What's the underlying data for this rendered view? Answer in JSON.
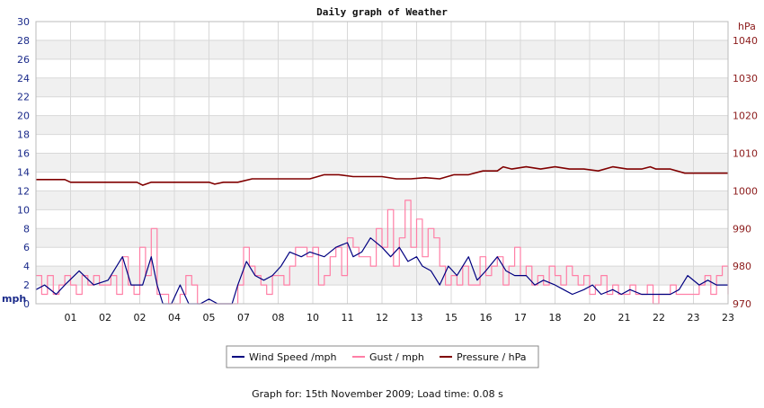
{
  "chart_data": {
    "type": "line",
    "title": "Daily graph of Weather",
    "date": "15th November 2009",
    "footer_prefix": "Graph for: ",
    "footer_suffix": "; Load time: 0.08 s",
    "x_ticks": [
      "01",
      "02",
      "02",
      "04",
      "05",
      "07",
      "08",
      "10",
      "11",
      "12",
      "13",
      "15",
      "16",
      "17",
      "18",
      "20",
      "21",
      "22",
      "23",
      "23"
    ],
    "y_left": {
      "unit": "mph",
      "min": 0,
      "max": 30,
      "step": 2,
      "ticks": [
        "0",
        "2",
        "4",
        "6",
        "8",
        "10",
        "12",
        "14",
        "16",
        "18",
        "20",
        "22",
        "24",
        "26",
        "28",
        "30"
      ]
    },
    "y_right": {
      "unit": "hPa",
      "min": 970,
      "max": 1045,
      "ticks": [
        "970",
        "980",
        "990",
        "1000",
        "1010",
        "1020",
        "1030",
        "1040"
      ]
    },
    "grid": true,
    "legend_position": "bottom",
    "colors": {
      "wind": "#000080",
      "gust": "#ff7fa6",
      "pressure": "#800000",
      "axis_left": "#1a2a8a",
      "axis_right": "#8b1a1a",
      "band": "#f0f0f0",
      "grid": "#d8d8d8"
    },
    "series": [
      {
        "name": "Wind Speed /mph",
        "color": "#000080",
        "axis": "left",
        "x": [
          0,
          0.3,
          0.7,
          1.0,
          1.5,
          2.0,
          2.5,
          3.0,
          3.3,
          3.7,
          4.0,
          4.2,
          4.4,
          4.7,
          5.0,
          5.3,
          5.7,
          6.0,
          6.3,
          6.6,
          6.8,
          7.0,
          7.3,
          7.6,
          7.9,
          8.2,
          8.5,
          8.8,
          9.2,
          9.5,
          10.0,
          10.4,
          10.8,
          11.0,
          11.3,
          11.6,
          12.0,
          12.3,
          12.6,
          12.9,
          13.2,
          13.4,
          13.7,
          14.0,
          14.3,
          14.6,
          15.0,
          15.3,
          15.6,
          16.0,
          16.3,
          16.6,
          17.0,
          17.3,
          17.6,
          18.0,
          18.3,
          18.6,
          19.0,
          19.3,
          19.6,
          20.0,
          20.3,
          20.6,
          21.0,
          21.3,
          21.6,
          22.0,
          22.3,
          22.6,
          23.0,
          23.3,
          23.6,
          24.0
        ],
        "values": [
          1.5,
          2,
          1,
          2,
          3.5,
          2,
          2.5,
          5,
          2,
          2,
          5,
          2,
          0,
          0,
          2,
          0,
          0,
          0.5,
          0,
          0,
          0,
          2,
          4.5,
          3,
          2.5,
          3,
          4,
          5.5,
          5,
          5.5,
          5,
          6,
          6.5,
          5,
          5.5,
          7,
          6,
          5,
          6,
          4.5,
          5,
          4,
          3.5,
          2,
          4,
          3,
          5,
          2.5,
          3.5,
          5,
          3.5,
          3,
          3,
          2,
          2.5,
          2,
          1.5,
          1,
          1.5,
          2,
          1,
          1.5,
          1,
          1.5,
          1,
          1,
          1,
          1,
          1.5,
          3,
          2,
          2.5,
          2,
          2
        ]
      },
      {
        "name": "Gust / mph",
        "color": "#ff7fa6",
        "axis": "left",
        "x": [
          0,
          0.2,
          0.4,
          0.6,
          0.8,
          1.0,
          1.2,
          1.4,
          1.6,
          1.8,
          2.0,
          2.2,
          2.4,
          2.6,
          2.8,
          3.0,
          3.2,
          3.4,
          3.6,
          3.8,
          4.0,
          4.2,
          4.4,
          4.6,
          4.8,
          5.0,
          5.2,
          5.4,
          5.6,
          5.8,
          6.0,
          6.2,
          6.4,
          6.6,
          6.8,
          7.0,
          7.2,
          7.4,
          7.6,
          7.8,
          8.0,
          8.2,
          8.4,
          8.6,
          8.8,
          9.0,
          9.2,
          9.4,
          9.6,
          9.8,
          10.0,
          10.2,
          10.4,
          10.6,
          10.8,
          11.0,
          11.2,
          11.4,
          11.6,
          11.8,
          12.0,
          12.2,
          12.4,
          12.6,
          12.8,
          13.0,
          13.2,
          13.4,
          13.6,
          13.8,
          14.0,
          14.2,
          14.4,
          14.6,
          14.8,
          15.0,
          15.2,
          15.4,
          15.6,
          15.8,
          16.0,
          16.2,
          16.4,
          16.6,
          16.8,
          17.0,
          17.2,
          17.4,
          17.6,
          17.8,
          18.0,
          18.2,
          18.4,
          18.6,
          18.8,
          19.0,
          19.2,
          19.4,
          19.6,
          19.8,
          20.0,
          20.2,
          20.4,
          20.6,
          20.8,
          21.0,
          21.2,
          21.4,
          21.6,
          21.8,
          22.0,
          22.2,
          22.4,
          22.6,
          22.8,
          23.0,
          23.2,
          23.4,
          23.6,
          23.8,
          24.0
        ],
        "values": [
          3,
          1,
          3,
          1,
          2,
          3,
          2,
          1,
          3,
          2,
          3,
          2,
          2,
          3,
          1,
          5,
          2,
          1,
          6,
          3,
          8,
          1,
          1,
          0,
          0,
          1,
          3,
          2,
          0,
          0,
          0,
          0,
          0,
          0,
          0,
          2,
          6,
          4,
          3,
          2,
          1,
          3,
          3,
          2,
          4,
          6,
          6,
          5,
          6,
          2,
          3,
          5,
          6,
          3,
          7,
          6,
          5,
          5,
          4,
          8,
          6,
          10,
          4,
          7,
          11,
          6,
          9,
          5,
          8,
          7,
          4,
          2,
          3,
          2,
          4,
          2,
          2,
          5,
          3,
          4,
          5,
          2,
          4,
          6,
          3,
          4,
          2,
          3,
          2,
          4,
          3,
          2,
          4,
          3,
          2,
          3,
          1,
          2,
          3,
          1,
          2,
          1,
          1,
          2,
          1,
          1,
          2,
          0,
          1,
          1,
          2,
          1,
          1,
          1,
          1,
          2,
          3,
          1,
          3,
          4,
          1
        ]
      },
      {
        "name": "Pressure / hPa",
        "color": "#800000",
        "axis": "right",
        "x": [
          0,
          1.0,
          1.2,
          3.5,
          3.7,
          4.0,
          6.0,
          6.2,
          6.5,
          7.0,
          7.5,
          9.5,
          10.0,
          10.5,
          11.0,
          12.0,
          12.5,
          13.0,
          13.5,
          14.0,
          14.5,
          15.0,
          15.5,
          16.0,
          16.2,
          16.5,
          17.0,
          17.5,
          18.0,
          18.5,
          19.0,
          19.5,
          20.0,
          20.5,
          21.0,
          21.3,
          21.5,
          22.0,
          22.5,
          24.0
        ],
        "values": [
          1003,
          1003,
          1002.3,
          1002.3,
          1001.5,
          1002.3,
          1002.3,
          1001.8,
          1002.3,
          1002.3,
          1003.2,
          1003.2,
          1004.3,
          1004.3,
          1003.8,
          1003.8,
          1003.2,
          1003.2,
          1003.5,
          1003.2,
          1004.3,
          1004.3,
          1005.3,
          1005.3,
          1006.4,
          1005.8,
          1006.4,
          1005.8,
          1006.4,
          1005.8,
          1005.8,
          1005.3,
          1006.4,
          1005.8,
          1005.8,
          1006.4,
          1005.8,
          1005.8,
          1004.7,
          1004.7
        ]
      }
    ]
  }
}
